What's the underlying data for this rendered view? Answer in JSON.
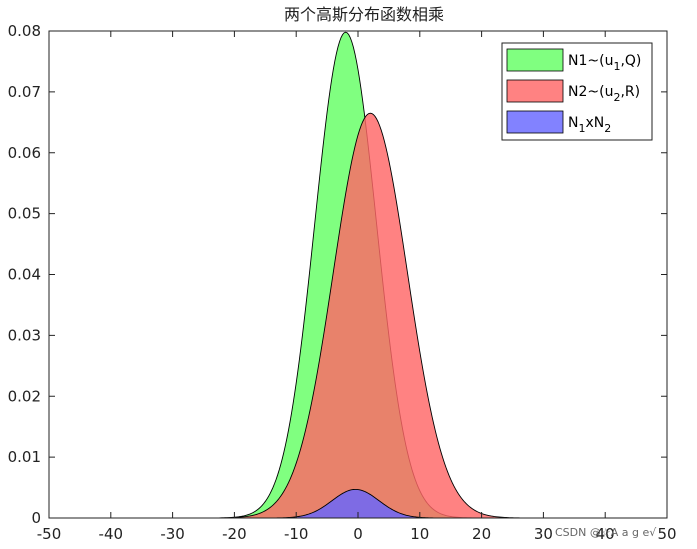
{
  "chart_data": {
    "type": "area",
    "title": "两个高斯分布函数相乘",
    "xlim": [
      -50,
      50
    ],
    "ylim": [
      0,
      0.08
    ],
    "xticks": [
      -50,
      -40,
      -30,
      -20,
      -10,
      0,
      10,
      20,
      30,
      40,
      50
    ],
    "yticks": [
      0,
      0.01,
      0.02,
      0.03,
      0.04,
      0.05,
      0.06,
      0.07,
      0.08
    ],
    "xtick_labels": [
      "-50",
      "-40",
      "-30",
      "-20",
      "-10",
      "0",
      "10",
      "20",
      "30",
      "40",
      "50"
    ],
    "ytick_labels": [
      "0",
      "0.01",
      "0.02",
      "0.03",
      "0.04",
      "0.05",
      "0.06",
      "0.07",
      "0.08"
    ],
    "grid": false,
    "legend_position": "top-right",
    "series": [
      {
        "label_main": "N1~(u",
        "label_sub": "1",
        "label_tail": ",Q)",
        "mean": -2,
        "peak": 0.0798,
        "sigma": 5.0,
        "color": "#80ff80",
        "opacity": 1.0
      },
      {
        "label_main": "N2~(u",
        "label_sub": "2",
        "label_tail": ",R)",
        "mean": 2,
        "peak": 0.0665,
        "sigma": 6.0,
        "color": "#ff6666",
        "opacity": 0.82
      },
      {
        "label_main": "N",
        "label_sub": "1",
        "label_mid": "xN",
        "label_sub2": "2",
        "mean": -0.4,
        "peak": 0.0047,
        "sigma": 3.8,
        "color": "#6666ff",
        "opacity": 0.82
      }
    ]
  },
  "watermark": "CSDN @☆A a g e√"
}
